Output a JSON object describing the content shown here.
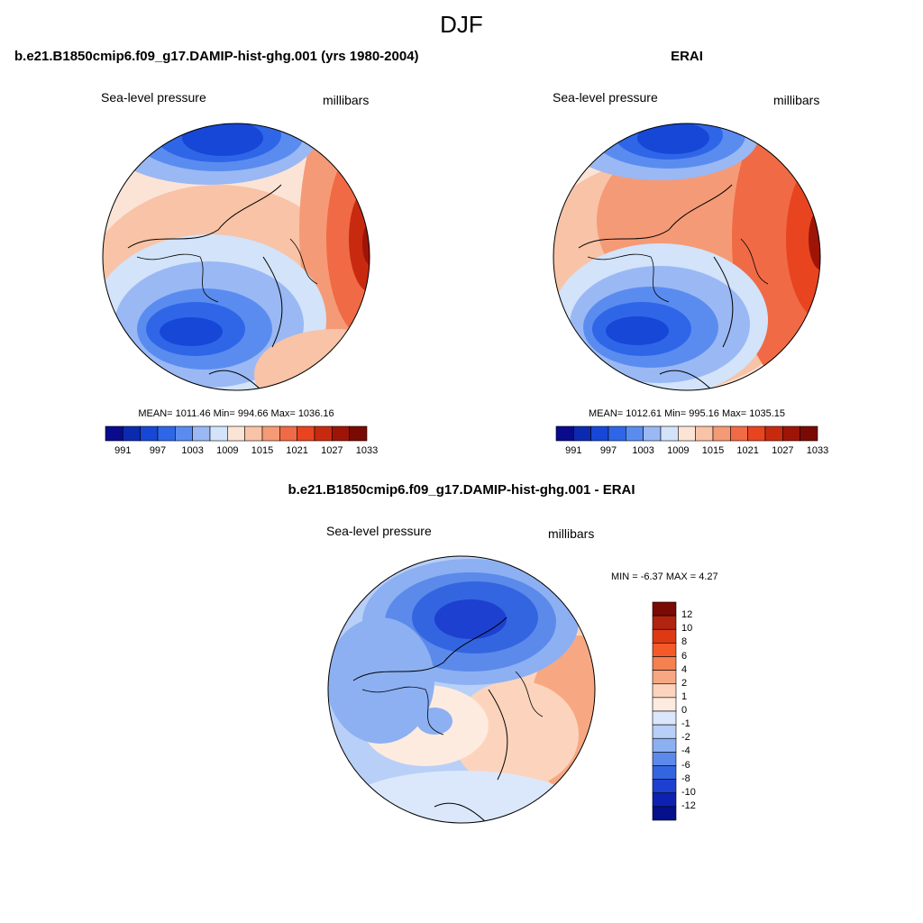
{
  "figure": {
    "title": "DJF"
  },
  "panels": [
    {
      "title": "b.e21.B1850cmip6.f09_g17.DAMIP-hist-ghg.001 (yrs 1980-2004)",
      "left_label": "Sea-level pressure",
      "right_label": "millibars",
      "stats": "MEAN= 1011.46  Min= 994.66  Max= 1036.16",
      "colorbar_ticks": [
        "991",
        "997",
        "1003",
        "1009",
        "1015",
        "1021",
        "1027",
        "1033"
      ]
    },
    {
      "title": "ERAI",
      "left_label": "Sea-level pressure",
      "right_label": "millibars",
      "stats": "MEAN= 1012.61  Min= 995.16  Max= 1035.15",
      "colorbar_ticks": [
        "991",
        "997",
        "1003",
        "1009",
        "1015",
        "1021",
        "1027",
        "1033"
      ]
    },
    {
      "title": "b.e21.B1850cmip6.f09_g17.DAMIP-hist-ghg.001 - ERAI",
      "left_label": "Sea-level pressure",
      "right_label": "millibars",
      "stats": "MIN =  -6.37 MAX =   4.27",
      "colorbar_ticks": [
        "12",
        "10",
        "8",
        "6",
        "4",
        "2",
        "1",
        "0",
        "-1",
        "-2",
        "-4",
        "-6",
        "-8",
        "-10",
        "-12"
      ]
    }
  ],
  "colors": {
    "abs_scale": [
      "#0a0a8c",
      "#0b2ab0",
      "#1747d6",
      "#2f66e8",
      "#5a8cf0",
      "#9ab8f4",
      "#d2e3fa",
      "#fbe4d6",
      "#f8c3a6",
      "#f59a76",
      "#f06a45",
      "#e84420",
      "#c82a10",
      "#9e1508",
      "#7a0a04"
    ],
    "diff_scale": [
      "#7a0a04",
      "#b02410",
      "#dd3a14",
      "#f45a28",
      "#f58050",
      "#f7a882",
      "#fcd4bd",
      "#fdebe0",
      "#dbe8fb",
      "#b8cff7",
      "#8cb0f2",
      "#5b8aeb",
      "#3465e0",
      "#1e40d0",
      "#0d22b0",
      "#05108a"
    ]
  }
}
